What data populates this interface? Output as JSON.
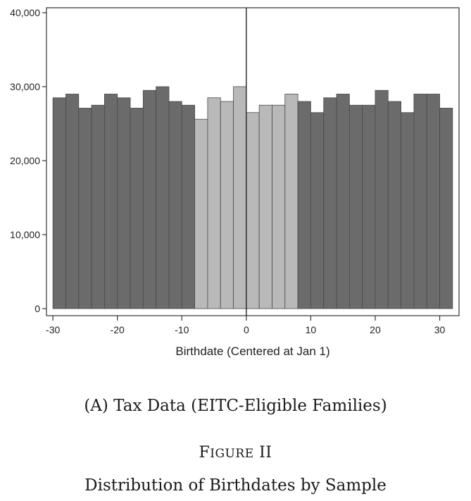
{
  "chart_data": {
    "type": "bar",
    "xlabel": "Birthdate (Centered at Jan 1)",
    "ylabel": "",
    "xlim": [
      -31,
      33
    ],
    "ylim": [
      0,
      40000
    ],
    "bin_width": 2,
    "x_ticks": [
      -30,
      -20,
      -10,
      0,
      10,
      20,
      30
    ],
    "y_ticks": [
      0,
      10000,
      20000,
      30000,
      40000
    ],
    "y_tick_labels": [
      "0",
      "10,000",
      "20,000",
      "30,000",
      "40,000"
    ],
    "reference_line_x": 0,
    "bin_starts": [
      -30,
      -28,
      -26,
      -24,
      -22,
      -20,
      -18,
      -16,
      -14,
      -12,
      -10,
      -8,
      -6,
      -4,
      -2,
      0,
      2,
      4,
      6,
      8,
      10,
      12,
      14,
      16,
      18,
      20,
      22,
      24,
      26,
      28,
      30
    ],
    "values": [
      28500,
      29000,
      27100,
      27500,
      29000,
      28500,
      27100,
      29500,
      30000,
      28000,
      27500,
      25600,
      28500,
      28000,
      30000,
      26500,
      27500,
      27500,
      29000,
      28000,
      26500,
      28500,
      29000,
      27500,
      27500,
      29500,
      28000,
      26500,
      29000,
      29000,
      27100
    ],
    "highlight_range": [
      -8,
      8
    ],
    "colors": {
      "outside": "#6b6b6b",
      "highlight": "#b9b9b9",
      "edge": "#4a4a4a",
      "axis": "#333333"
    }
  },
  "captions": {
    "panel": "(A) Tax Data (EITC-Eligible Families)",
    "figure_label_first": "F",
    "figure_label_rest": "IGURE",
    "figure_label_number": "II",
    "figure_title": "Distribution of Birthdates by Sample"
  }
}
